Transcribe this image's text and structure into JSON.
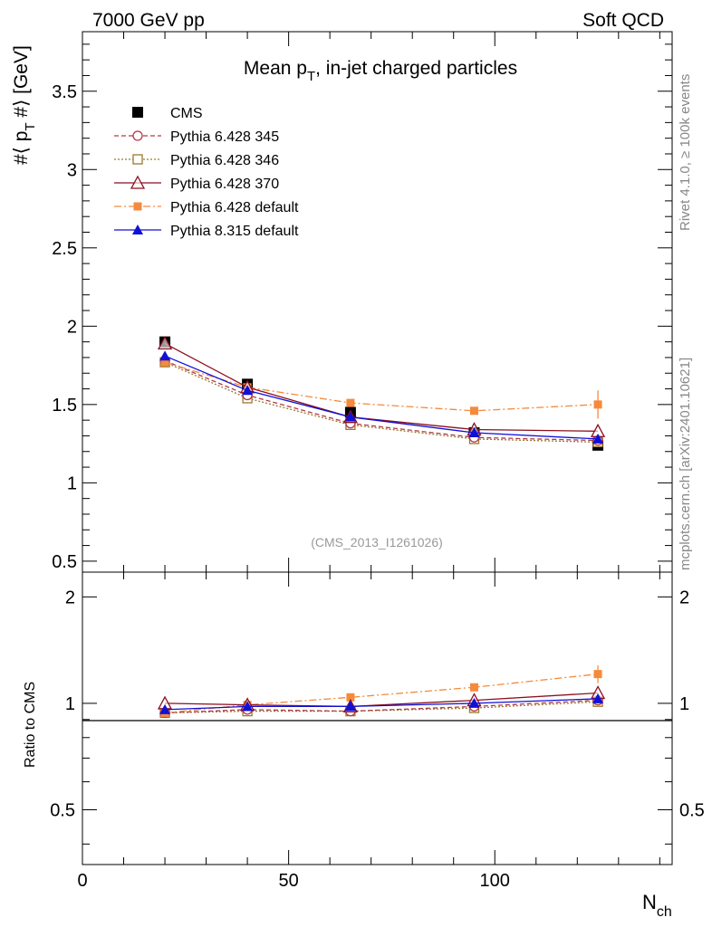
{
  "header": {
    "left": "7000 GeV pp",
    "right": "Soft QCD"
  },
  "side_labels": {
    "rivet": "Rivet 4.1.0, ≥ 100k events",
    "mcplots": "mcplots.cern.ch [arXiv:2401.10621]"
  },
  "chart_data": {
    "type": "line",
    "title": "Mean p",
    "title_sub": "T",
    "title_rest": ", in-jet charged particles",
    "analysis_id": "(CMS_2013_I1261026)",
    "xlabel": "N",
    "xlabel_sub": "ch",
    "ylabel": "#⟨ p",
    "ylabel_sub": "T",
    "ylabel_rest": " #⟩ [GeV]",
    "ratio_ylabel": "Ratio to CMS",
    "xlim": [
      0,
      143
    ],
    "ylim": [
      0.43,
      3.88
    ],
    "ratio_ylim": [
      0.35,
      2.35
    ],
    "x_ticks": [
      "0",
      "50",
      "100"
    ],
    "y_ticks": [
      "0.5",
      "1",
      "1.5",
      "2",
      "2.5",
      "3",
      "3.5"
    ],
    "ratio_y_ticks": [
      "0.5",
      "1",
      "2"
    ],
    "x": [
      20,
      40,
      65,
      95,
      125
    ],
    "series": [
      {
        "name": "CMS",
        "color": "#000000",
        "dash": "none",
        "marker": "filled-square",
        "is_data": true,
        "values": [
          1.9,
          1.63,
          1.45,
          1.32,
          1.24
        ],
        "errors": [
          0,
          0,
          0,
          0,
          0
        ],
        "ratio": [
          1.0,
          1.0,
          1.0,
          1.0,
          1.0
        ],
        "ratio_errors": [
          0,
          0,
          0,
          0,
          0
        ]
      },
      {
        "name": "Pythia 6.428 345",
        "color": "#b03a48",
        "dash": "5,3",
        "marker": "open-circle",
        "values": [
          1.78,
          1.56,
          1.38,
          1.29,
          1.27
        ],
        "errors": [
          0,
          0,
          0,
          0,
          0
        ],
        "ratio": [
          0.94,
          0.96,
          0.95,
          0.98,
          1.02
        ],
        "ratio_errors": [
          0,
          0,
          0,
          0,
          0
        ]
      },
      {
        "name": "Pythia 6.428 346",
        "color": "#9a7a2e",
        "dash": "2,2",
        "marker": "open-square",
        "values": [
          1.77,
          1.54,
          1.37,
          1.28,
          1.26
        ],
        "errors": [
          0,
          0,
          0,
          0,
          0
        ],
        "ratio": [
          0.94,
          0.95,
          0.95,
          0.97,
          1.01
        ],
        "ratio_errors": [
          0,
          0,
          0,
          0,
          0
        ]
      },
      {
        "name": "Pythia 6.428 370",
        "color": "#8b0f1f",
        "dash": "none",
        "marker": "open-triangle",
        "values": [
          1.89,
          1.61,
          1.42,
          1.34,
          1.33
        ],
        "errors": [
          0,
          0,
          0,
          0,
          0
        ],
        "ratio": [
          1.0,
          0.99,
          0.98,
          1.02,
          1.07
        ],
        "ratio_errors": [
          0,
          0,
          0,
          0,
          0
        ]
      },
      {
        "name": "Pythia 6.428 default",
        "color": "#f58a3c",
        "dash": "8,3,2,3",
        "marker": "filled-square-small",
        "values": [
          1.77,
          1.61,
          1.51,
          1.46,
          1.5
        ],
        "errors": [
          0,
          0,
          0,
          0,
          0.09
        ],
        "ratio": [
          0.94,
          0.99,
          1.04,
          1.11,
          1.21
        ],
        "ratio_errors": [
          0,
          0,
          0,
          0,
          0.07
        ]
      },
      {
        "name": "Pythia 8.315 default",
        "color": "#1010d8",
        "dash": "none",
        "marker": "filled-triangle",
        "values": [
          1.81,
          1.59,
          1.42,
          1.32,
          1.28
        ],
        "errors": [
          0,
          0,
          0,
          0,
          0
        ],
        "ratio": [
          0.96,
          0.98,
          0.98,
          1.0,
          1.03
        ],
        "ratio_errors": [
          0,
          0,
          0,
          0,
          0
        ]
      }
    ]
  }
}
